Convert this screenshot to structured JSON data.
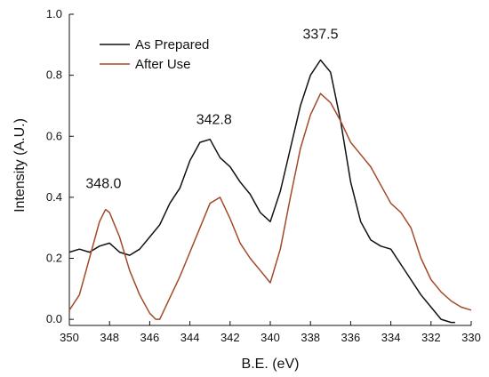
{
  "chart_data": {
    "type": "line",
    "title": "",
    "xlabel": "B.E. (eV)",
    "ylabel": "Intensity (A.U.)",
    "xlim": [
      350,
      330
    ],
    "ylim": [
      -0.02,
      1.0
    ],
    "x_reversed": true,
    "x_ticks": [
      "350",
      "348",
      "346",
      "344",
      "342",
      "340",
      "338",
      "336",
      "334",
      "332",
      "330"
    ],
    "y_ticks": [
      "0.0",
      "0.2",
      "0.4",
      "0.6",
      "0.8",
      "1.0"
    ],
    "grid": false,
    "legend_position": "top-left",
    "annotations": [
      {
        "text": "348.0",
        "x": 348.3,
        "y": 0.43
      },
      {
        "text": "342.8",
        "x": 342.8,
        "y": 0.64
      },
      {
        "text": "337.5",
        "x": 337.5,
        "y": 0.92
      }
    ],
    "series": [
      {
        "name": "As Prepared",
        "color": "#111111",
        "x": [
          350,
          349.5,
          349,
          348.5,
          348,
          347.5,
          347,
          346.5,
          346,
          345.5,
          345,
          344.5,
          344,
          343.5,
          343,
          342.5,
          342,
          341.5,
          341,
          340.5,
          340,
          339.5,
          339,
          338.5,
          338,
          337.5,
          337,
          336.5,
          336,
          335.5,
          335,
          334.5,
          334,
          333.5,
          333,
          332.5,
          332,
          331.5,
          331,
          330.8
        ],
        "y": [
          0.22,
          0.23,
          0.22,
          0.24,
          0.25,
          0.22,
          0.21,
          0.23,
          0.27,
          0.31,
          0.38,
          0.43,
          0.52,
          0.58,
          0.59,
          0.53,
          0.5,
          0.45,
          0.41,
          0.35,
          0.32,
          0.42,
          0.56,
          0.7,
          0.8,
          0.85,
          0.81,
          0.65,
          0.45,
          0.32,
          0.26,
          0.24,
          0.23,
          0.18,
          0.13,
          0.08,
          0.04,
          0.0,
          -0.01,
          -0.01
        ]
      },
      {
        "name": "After Use",
        "color": "#a34a28",
        "x": [
          350,
          349.5,
          349,
          348.5,
          348.2,
          348,
          347.5,
          347,
          346.5,
          346,
          345.7,
          345.5,
          345,
          344.5,
          344,
          343.5,
          343,
          342.5,
          342,
          341.5,
          341,
          340.5,
          340,
          339.5,
          339,
          338.5,
          338,
          337.5,
          337,
          336.5,
          336,
          335.5,
          335,
          334.5,
          334,
          333.5,
          333,
          332.5,
          332,
          331.5,
          331,
          330.5,
          330
        ],
        "y": [
          0.03,
          0.08,
          0.2,
          0.32,
          0.36,
          0.35,
          0.27,
          0.16,
          0.08,
          0.02,
          0.0,
          0.0,
          0.07,
          0.14,
          0.22,
          0.3,
          0.38,
          0.4,
          0.33,
          0.25,
          0.2,
          0.16,
          0.12,
          0.23,
          0.4,
          0.56,
          0.67,
          0.74,
          0.71,
          0.65,
          0.58,
          0.54,
          0.5,
          0.44,
          0.38,
          0.35,
          0.3,
          0.2,
          0.13,
          0.09,
          0.06,
          0.04,
          0.03
        ]
      }
    ]
  }
}
